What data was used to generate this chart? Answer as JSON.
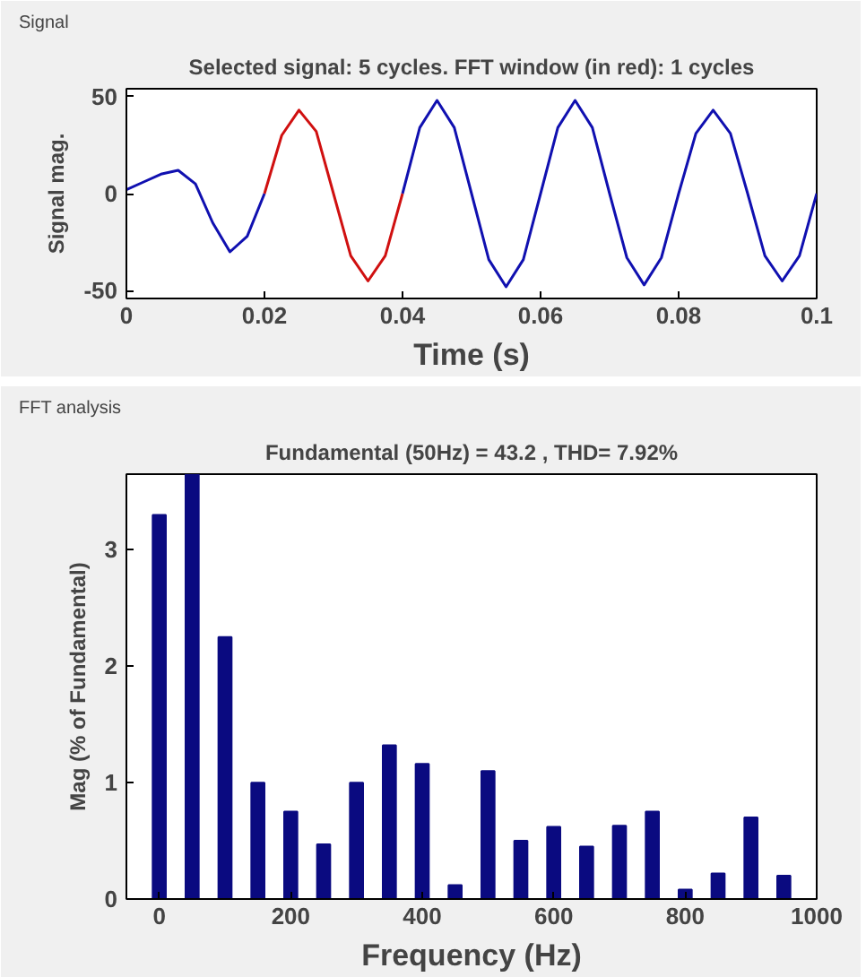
{
  "chart_data": [
    {
      "type": "line",
      "title": "Selected signal: 5 cycles. FFT window (in red): 1 cycles",
      "annotations": [
        "Signal"
      ],
      "xlabel": "Time (s)",
      "ylabel": "Signal mag.",
      "xlim": [
        0,
        0.1
      ],
      "ylim": [
        -54,
        54
      ],
      "xticks": [
        0,
        0.02,
        0.04,
        0.06,
        0.08,
        0.1
      ],
      "yticks": [
        -50,
        0,
        50
      ],
      "grid": false,
      "series": [
        {
          "color": "#1010b0",
          "x": [
            0,
            0.0025,
            0.005,
            0.0075,
            0.01,
            0.0125,
            0.015,
            0.0175,
            0.02,
            0.0225,
            0.025,
            0.0275,
            0.03,
            0.0325,
            0.035,
            0.0375,
            0.04,
            0.0425,
            0.045,
            0.0475,
            0.05,
            0.0525,
            0.055,
            0.0575,
            0.06,
            0.0625,
            0.065,
            0.0675,
            0.07,
            0.0725,
            0.075,
            0.0775,
            0.08,
            0.0825,
            0.085,
            0.0875,
            0.09,
            0.0925,
            0.095,
            0.0975,
            0.1
          ],
          "values": [
            2,
            6,
            10,
            12,
            5,
            -15,
            -30,
            -22,
            0,
            null,
            null,
            null,
            null,
            null,
            null,
            null,
            0,
            34,
            48,
            34,
            0,
            -34,
            -48,
            -34,
            0,
            34,
            48,
            34,
            0,
            -33,
            -47,
            -33,
            0,
            31,
            43,
            31,
            0,
            -32,
            -45,
            -32,
            0
          ]
        },
        {
          "color": "#d01010",
          "x": [
            0.02,
            0.0225,
            0.025,
            0.0275,
            0.03,
            0.0325,
            0.035,
            0.0375,
            0.04
          ],
          "values": [
            0,
            30,
            43,
            32,
            0,
            -32,
            -45,
            -32,
            0
          ]
        }
      ]
    },
    {
      "type": "bar",
      "title": "Fundamental (50Hz) = 43.2 , THD= 7.92%",
      "annotations": [
        "FFT analysis"
      ],
      "xlabel": "Frequency (Hz)",
      "ylabel": "Mag (% of Fundamental)",
      "xlim": [
        -50,
        1000
      ],
      "ylim": [
        0,
        3.65
      ],
      "xticks": [
        0,
        200,
        400,
        600,
        800,
        1000
      ],
      "yticks": [
        0,
        1,
        2,
        3
      ],
      "grid": false,
      "x": [
        0,
        50,
        100,
        150,
        200,
        250,
        300,
        350,
        400,
        450,
        500,
        550,
        600,
        650,
        700,
        750,
        800,
        850,
        900,
        950
      ],
      "series": [
        {
          "color": "#0a0a80",
          "values": [
            3.3,
            3.65,
            2.25,
            1.0,
            0.75,
            0.47,
            1.0,
            1.32,
            1.16,
            0.12,
            1.1,
            0.5,
            0.62,
            0.45,
            0.63,
            0.75,
            0.08,
            0.22,
            0.7,
            0.2
          ]
        }
      ]
    }
  ]
}
